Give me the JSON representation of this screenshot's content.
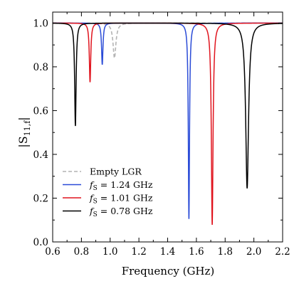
{
  "chart_data": {
    "type": "line",
    "xlabel": "Frequency (GHz)",
    "ylabel": "|S11,f|",
    "ylabel_main": "|S",
    "ylabel_sub": "11,f",
    "ylabel_end": "|",
    "xlim": [
      0.6,
      2.2
    ],
    "ylim": [
      0.0,
      1.05
    ],
    "xticks": [
      "0.6",
      "0.8",
      "1.0",
      "1.2",
      "1.4",
      "1.6",
      "1.8",
      "2.0",
      "2.2"
    ],
    "yticks": [
      "0.0",
      "0.2",
      "0.4",
      "0.6",
      "0.8",
      "1.0"
    ],
    "legend_position": "lower-left",
    "series": [
      {
        "name": "Empty LGR",
        "color": "#b4b4b4",
        "dashed": true,
        "resonances": [
          {
            "f0": 1.03,
            "min": 0.84,
            "gamma": 0.012
          }
        ]
      },
      {
        "name": "fS = 1.24 GHz",
        "name_prefix": "f",
        "name_sub": "S",
        "name_rest": " = 1.24 GHz",
        "color": "#2a4bd7",
        "dashed": false,
        "resonances": [
          {
            "f0": 0.945,
            "min": 0.81,
            "gamma": 0.006
          },
          {
            "f0": 1.548,
            "min": 0.105,
            "gamma": 0.005
          }
        ]
      },
      {
        "name": "fS = 1.01 GHz",
        "name_prefix": "f",
        "name_sub": "S",
        "name_rest": " = 1.01 GHz",
        "color": "#e0141e",
        "dashed": false,
        "resonances": [
          {
            "f0": 0.86,
            "min": 0.73,
            "gamma": 0.006
          },
          {
            "f0": 1.71,
            "min": 0.078,
            "gamma": 0.007
          }
        ]
      },
      {
        "name": "fS = 0.78 GHz",
        "name_prefix": "f",
        "name_sub": "S",
        "name_rest": " = 0.78 GHz",
        "color": "#000000",
        "dashed": false,
        "resonances": [
          {
            "f0": 0.758,
            "min": 0.53,
            "gamma": 0.006
          },
          {
            "f0": 1.953,
            "min": 0.245,
            "gamma": 0.012
          }
        ]
      }
    ]
  }
}
